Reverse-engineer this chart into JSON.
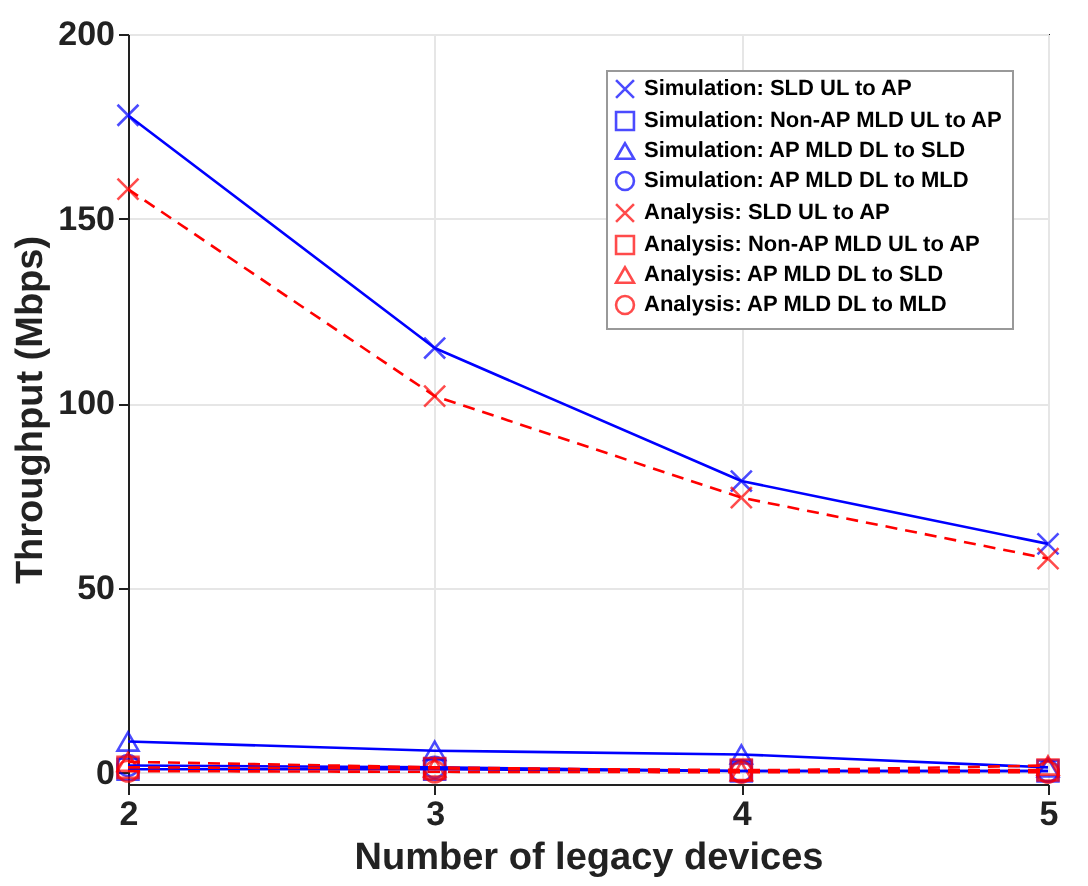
{
  "chart_data": {
    "type": "line",
    "xlabel": "Number of legacy devices",
    "ylabel": "Throughput (Mbps)",
    "x": [
      2,
      3,
      4,
      5
    ],
    "xlim": [
      2,
      5
    ],
    "xticks": [
      2,
      3,
      4,
      5
    ],
    "ylim": [
      -3,
      200
    ],
    "yticks": [
      0,
      50,
      100,
      150,
      200
    ],
    "grid": true,
    "legend": "top right",
    "series": [
      {
        "name": "Simulation: SLD UL to AP",
        "color": "#0000ff",
        "marker": "cross",
        "line_style": "solid",
        "values": [
          178,
          115,
          79,
          62
        ]
      },
      {
        "name": "Simulation: Non-AP MLD UL to AP",
        "color": "#0000ff",
        "marker": "square",
        "line_style": "solid",
        "values": [
          1,
          1,
          0.5,
          0.5
        ]
      },
      {
        "name": "Simulation: AP MLD DL to SLD",
        "color": "#0000ff",
        "marker": "triangle",
        "line_style": "solid",
        "values": [
          8.5,
          6,
          5,
          1.5
        ]
      },
      {
        "name": "Simulation: AP MLD DL to MLD",
        "color": "#0000ff",
        "marker": "circle",
        "line_style": "solid",
        "values": [
          2,
          1.5,
          0.5,
          0.5
        ]
      },
      {
        "name": "Analysis: SLD UL to AP",
        "color": "#ff0000",
        "marker": "cross",
        "line_style": "dashed",
        "values": [
          158,
          102,
          74.5,
          58
        ]
      },
      {
        "name": "Analysis: Non-AP MLD UL to AP",
        "color": "#ff0000",
        "marker": "square",
        "line_style": "dashed",
        "values": [
          1.5,
          1.2,
          0.8,
          0.8
        ]
      },
      {
        "name": "Analysis: AP MLD DL to SLD",
        "color": "#ff0000",
        "marker": "triangle",
        "line_style": "dashed",
        "values": [
          3,
          1.5,
          0.5,
          2
        ]
      },
      {
        "name": "Analysis: AP MLD DL to MLD",
        "color": "#ff0000",
        "marker": "circle",
        "line_style": "dashed",
        "values": [
          0.5,
          0.3,
          0.2,
          0.2
        ]
      }
    ]
  }
}
